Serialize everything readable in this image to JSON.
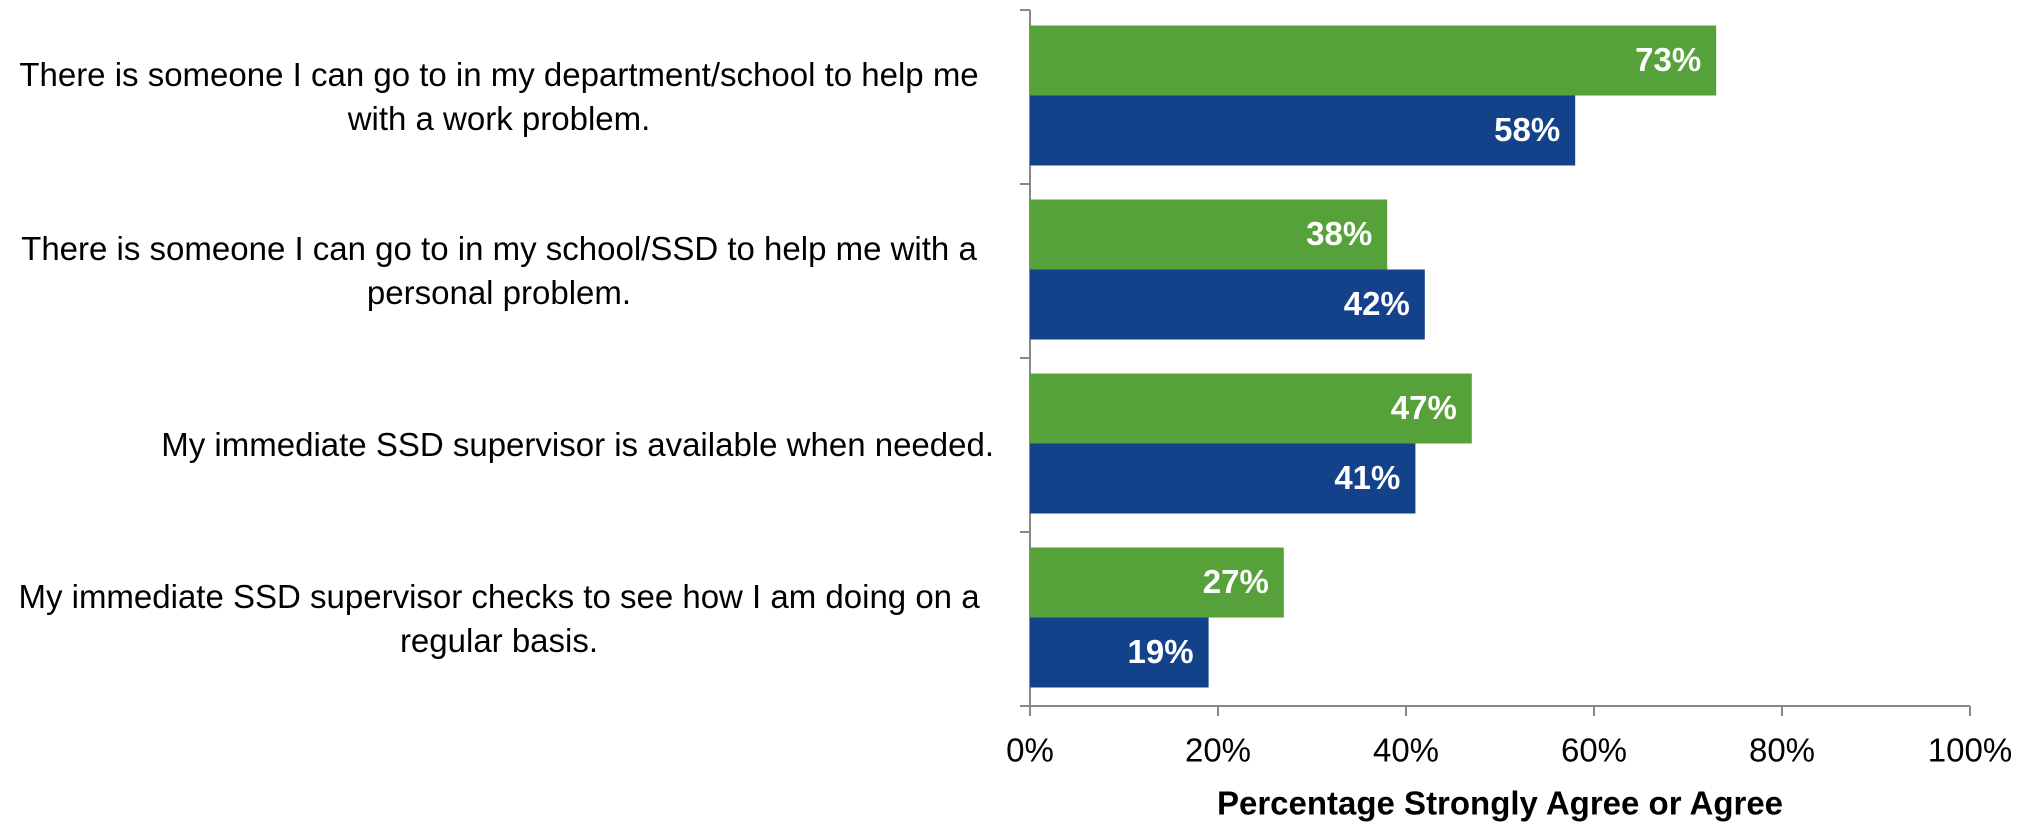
{
  "chart_data": {
    "type": "bar",
    "orientation": "horizontal",
    "categories": [
      "There is someone I can go to in my department/school to help me with a work problem.",
      "There is someone I can go to in my school/SSD to help me with a personal problem.",
      "My immediate SSD supervisor is available when needed.",
      "My immediate SSD supervisor checks to see how I am doing on a regular basis."
    ],
    "series": [
      {
        "color": "#56a13a",
        "values": [
          73,
          38,
          47,
          27
        ],
        "value_labels": [
          "73%",
          "38%",
          "47%",
          "27%"
        ]
      },
      {
        "color": "#13428a",
        "values": [
          58,
          42,
          41,
          19
        ],
        "value_labels": [
          "58%",
          "42%",
          "41%",
          "19%"
        ]
      }
    ],
    "xlabel": "Percentage Strongly Agree or Agree",
    "xlim": [
      0,
      100
    ],
    "xticks": [
      {
        "value": 0,
        "label": "0%"
      },
      {
        "value": 20,
        "label": "20%"
      },
      {
        "value": 40,
        "label": "40%"
      },
      {
        "value": 60,
        "label": "60%"
      },
      {
        "value": 80,
        "label": "80%"
      },
      {
        "value": 100,
        "label": "100%"
      }
    ],
    "grid": false
  }
}
